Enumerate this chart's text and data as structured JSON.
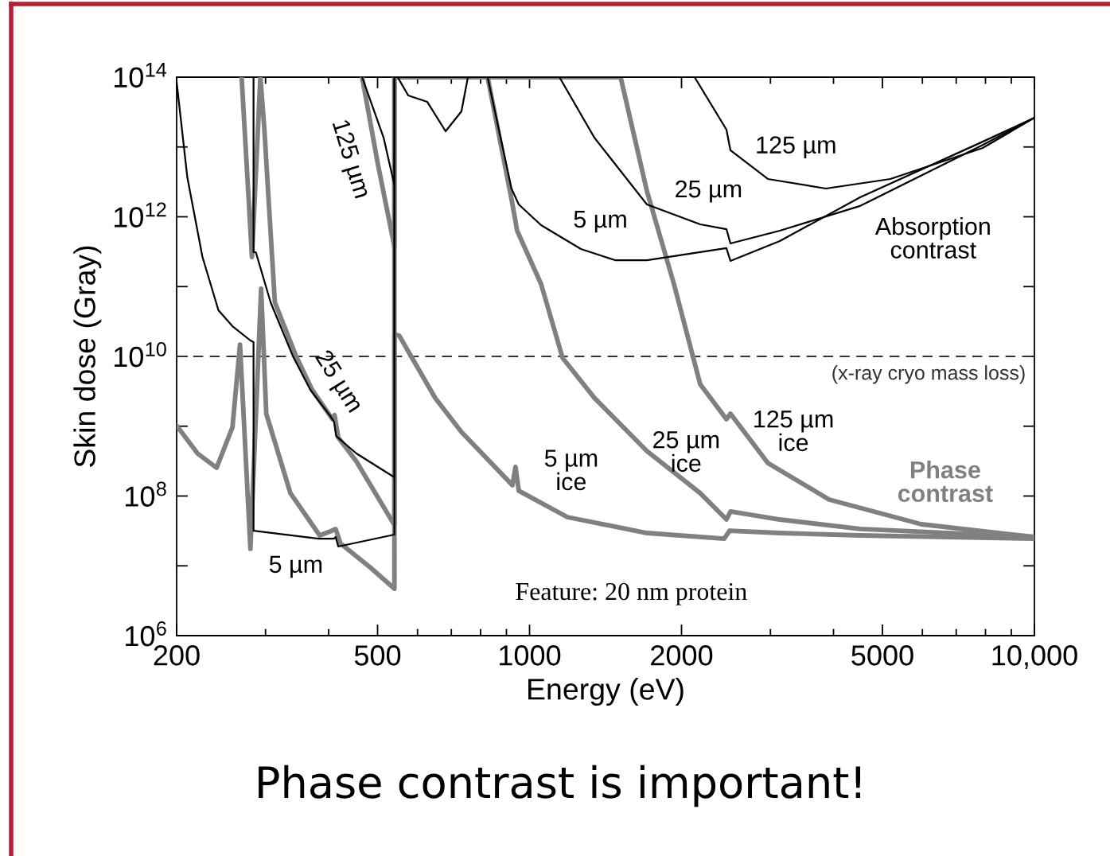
{
  "chart_data": {
    "type": "line",
    "xlabel": "Energy (eV)",
    "ylabel": "Skin dose (Gray)",
    "log": "xy",
    "xlim": [
      200,
      10000
    ],
    "ylim": [
      1000000.0,
      100000000000000.0
    ],
    "xticks": [
      200,
      {
        "value": 300,
        "label": null
      },
      {
        "value": 400,
        "label": null
      },
      500,
      {
        "value": 600,
        "label": null
      },
      {
        "value": 700,
        "label": null
      },
      {
        "value": 800,
        "label": null
      },
      {
        "value": 900,
        "label": null
      },
      1000,
      2000,
      {
        "value": 3000,
        "label": null
      },
      {
        "value": 4000,
        "label": null
      },
      5000,
      {
        "value": 6000,
        "label": null
      },
      {
        "value": 7000,
        "label": null
      },
      {
        "value": 8000,
        "label": null
      },
      {
        "value": 9000,
        "label": null
      },
      {
        "value": 10000,
        "label": "10,000"
      }
    ],
    "yticks": [
      {
        "value": 1000000.0,
        "label": "10$^{6}$"
      },
      {
        "value": 10000000.0,
        "label": null
      },
      {
        "value": 100000000.0,
        "label": "10$^{8}$"
      },
      {
        "value": 1000000000.0,
        "label": null
      },
      {
        "value": 10000000000.0,
        "label": "10$^{10}$"
      },
      {
        "value": 100000000000.0,
        "label": null
      },
      {
        "value": 1000000000000.0,
        "label": "10$^{12}$"
      },
      {
        "value": 10000000000000.0,
        "label": null
      },
      {
        "value": 100000000000000.0,
        "label": "10$^{14}$"
      }
    ],
    "grid": false,
    "series": [
      {
        "color": "#000000",
        "x": [
          200,
          210,
          225,
          242,
          258,
          280,
          284,
          284,
          382,
          410,
          413,
          418,
          540,
          540,
          548,
          575,
          627,
          682,
          733,
          755,
          790,
          826,
          921,
          952,
          1054,
          1264,
          1477,
          1708,
          2455,
          2500,
          3131,
          4516,
          7899,
          10000
        ],
        "values": [
          85500000000000.0,
          3660000000000.0,
          266000000000.0,
          45800000000.0,
          27100000000.0,
          16900000000.0,
          16000000000.0,
          31900000.0,
          24500000.0,
          24500000.0,
          25900000.0,
          18900000.0,
          28000000.0,
          100000000000000.0,
          100000000000000.0,
          54700000000000.0,
          44400000000000.0,
          16800000000000.0,
          32400000000000.0,
          100000000000000.0,
          null,
          100000000000000.0,
          2540000000000.0,
          1500000000000.0,
          759000000000.0,
          345000000000.0,
          239000000000.0,
          239000000000.0,
          355000000000.0,
          233000000000.0,
          449000000000.0,
          1900000000000.0,
          11900000000000.0,
          26200000000000.0
        ]
      },
      {
        "color": "#000000",
        "x": [
          284,
          284,
          287,
          307,
          340,
          368,
          403,
          410,
          414,
          454,
          540,
          540,
          1146,
          1344,
          1708,
          2178,
          2455,
          2500,
          3131,
          4516,
          7899,
          10000
        ],
        "values": [
          100000000000000.0,
          311000000000.0,
          311000000000.0,
          59600000000.0,
          10000000000.0,
          3320000000.0,
          1400000000.0,
          1160000000.0,
          724000000.0,
          407000000.0,
          185000000.0,
          100000000000000.0,
          100000000000000.0,
          13600000000000.0,
          1500000000000.0,
          780000000000.0,
          665000000000.0,
          415000000000.0,
          632000000000.0,
          1430000000000.0,
          10700000000000.0,
          26200000000000.0
        ]
      },
      {
        "color": "#000000",
        "x": [
          466,
          514,
          540,
          540,
          2123,
          2455,
          2500,
          2965,
          3864,
          5184,
          7899,
          10000
        ],
        "values": [
          100000000000000.0,
          13600000000000.0,
          2820000000000.0,
          100000000000000.0,
          100000000000000.0,
          17700000000000.0,
          8950000000000.0,
          3480000000000.0,
          2540000000000.0,
          3480000000000.0,
          9680000000000.0,
          26200000000000.0
        ]
      },
      {
        "color": "#808080",
        "x": [
          200,
          220,
          240,
          258,
          267,
          280,
          294,
          301,
          336,
          384,
          403,
          413,
          422,
          483,
          540,
          540,
          552,
          650,
          733,
          925,
          938,
          952,
          1188,
          1708,
          2430,
          2490,
          3131,
          4516,
          10000
        ],
        "values": [
          1020000000.0,
          407000000.0,
          254000000.0,
          968000000.0,
          14800000000.0,
          17500000.0,
          93100000000.0,
          1510000000.0,
          110000000.0,
          27300000.0,
          31100000.0,
          33700000.0,
          21000000.0,
          9550000.0,
          4700000.0,
          20800000000.0,
          19800000000.0,
          2550000000.0,
          826000000.0,
          143000000.0,
          261000000.0,
          119000000.0,
          49900000.0,
          29500000.0,
          24500000.0,
          31900000.0,
          29500000.0,
          27300000.0,
          24500000.0
        ]
      },
      {
        "color": "#808080",
        "x": [
          269,
          282,
          293,
          298,
          313,
          345,
          371,
          407,
          411,
          418,
          454,
          540,
          540,
          826,
          921,
          945,
          1054,
          1163,
          1344,
          1708,
          2178,
          2455,
          2500,
          3131,
          4516,
          10000
        ],
        "values": [
          100000000000000.0,
          266000000000.0,
          100000000000000.0,
          20700000000000.0,
          59600000000.0,
          10000000000.0,
          3320000000.0,
          1260000000.0,
          1440000000.0,
          688000000.0,
          313000000.0,
          38400000.0,
          100000000000000.0,
          100000000000000.0,
          1800000000000.0,
          632000000000.0,
          109000000000.0,
          9480000000.0,
          2550000000.0,
          441000000.0,
          110000000.0,
          46100000.0,
          60000000.0,
          46100000.0,
          33700000.0,
          25900000.0
        ]
      },
      {
        "color": "#808080",
        "x": [
          466,
          501,
          540,
          540,
          1515,
          1708,
          1932,
          2178,
          2455,
          2500,
          2965,
          3922,
          5973,
          10000
        ],
        "values": [
          100000000000000.0,
          5570000000000.0,
          374000000000.0,
          100000000000000.0,
          100000000000000.0,
          2340000000000.0,
          109000000000.0,
          3990000000.0,
          1260000000.0,
          1510000000.0,
          297000000.0,
          88900000.0,
          39400000.0,
          25900000.0
        ]
      }
    ],
    "ref_lines": [
      {
        "axis": "y",
        "value": 10000000000.0,
        "label": "(x-ray cryo mass loss)",
        "color": "#333333",
        "line_style": "dashed"
      }
    ],
    "annotations": [
      "125 µm",
      "25 µm",
      "5 µm",
      "Absorption\ncontrast",
      "125 µm",
      "25 µm",
      "5 µm",
      "5 µm\nice",
      "25 µm\nice",
      "125 µm\nice",
      "Phase\ncontrast",
      "Feature: 20 nm protein",
      "Phase contrast is important!"
    ]
  }
}
